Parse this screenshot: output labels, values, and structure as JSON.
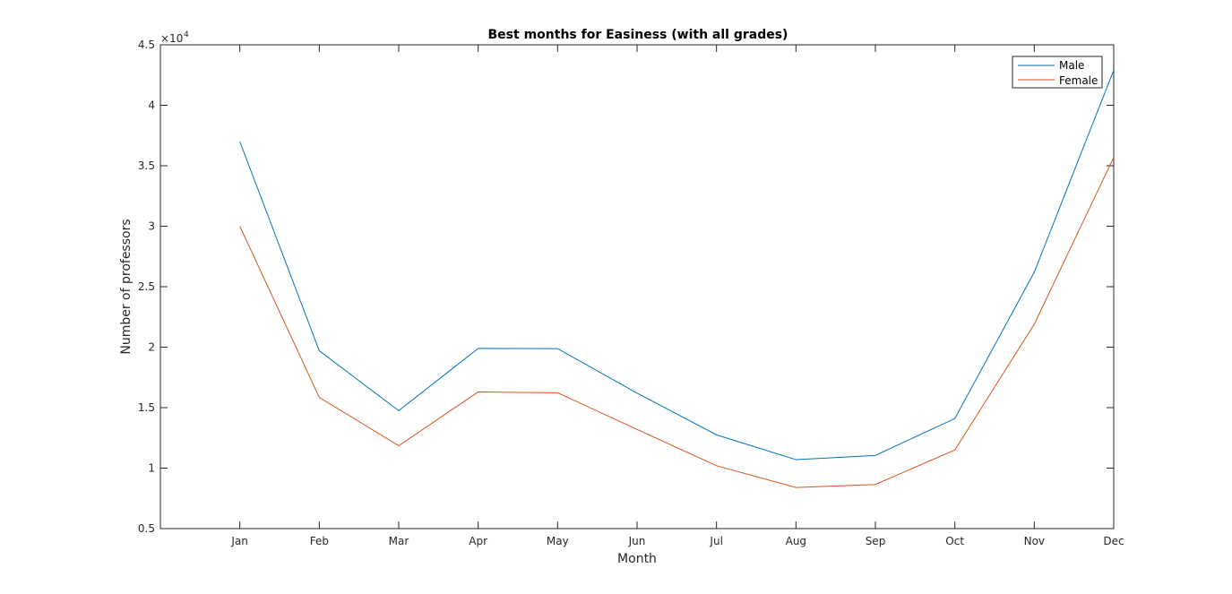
{
  "chart_data": {
    "type": "line",
    "title": "Best months for Easiness (with all grades)",
    "xlabel": "Month",
    "ylabel": "Number of professors",
    "categories": [
      "Jan",
      "Feb",
      "Mar",
      "Apr",
      "May",
      "Jun",
      "Jul",
      "Aug",
      "Sep",
      "Oct",
      "Nov",
      "Dec"
    ],
    "y_multiplier_label": "×10",
    "y_multiplier_exponent": "4",
    "yticks": [
      "0.5",
      "1",
      "1.5",
      "2",
      "2.5",
      "3",
      "3.5",
      "4",
      "4.5"
    ],
    "ylim": [
      5000,
      45000
    ],
    "grid": false,
    "legend_position": "top-right",
    "series": [
      {
        "name": "Male",
        "color": "#0072BD",
        "values": [
          37000,
          19700,
          14750,
          19900,
          19880,
          16200,
          12750,
          10700,
          11050,
          14100,
          26200,
          42900
        ]
      },
      {
        "name": "Female",
        "color": "#D95319",
        "values": [
          30000,
          15850,
          11850,
          16300,
          16230,
          13200,
          10200,
          8400,
          8650,
          11500,
          21900,
          35700
        ]
      }
    ]
  }
}
